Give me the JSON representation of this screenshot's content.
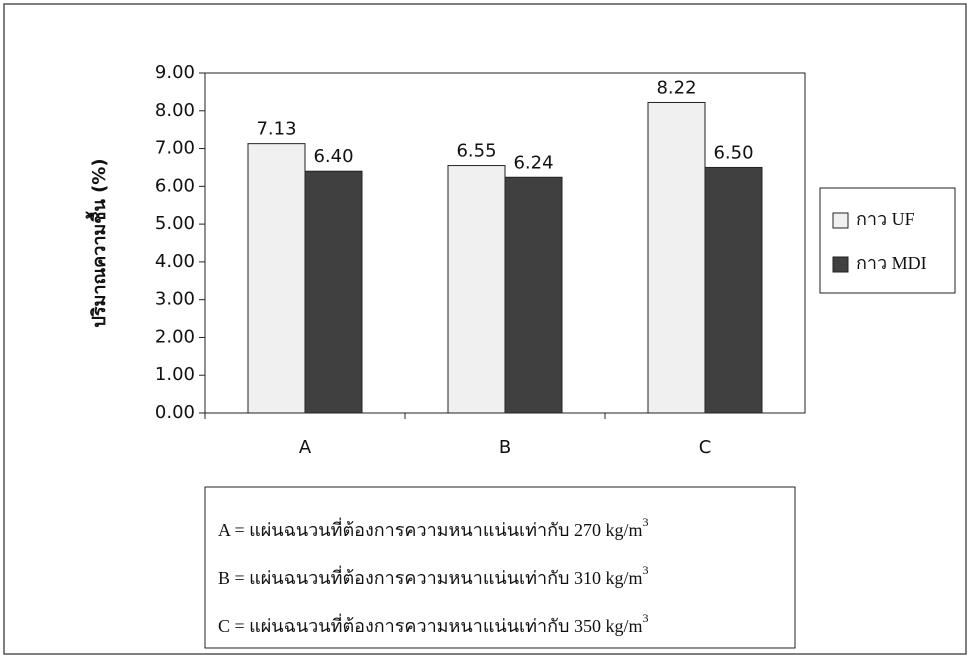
{
  "chart_data": {
    "type": "bar",
    "y_label": "ปริมาณความชื้น (%)",
    "categories": [
      "A",
      "B",
      "C"
    ],
    "series": [
      {
        "name": "กาว UF",
        "color": "#f0f0f0",
        "values": [
          7.13,
          6.55,
          8.22
        ]
      },
      {
        "name": "กาว MDI",
        "color": "#404040",
        "values": [
          6.4,
          6.24,
          6.5
        ]
      }
    ],
    "ylim": [
      0,
      9
    ],
    "yticks": [
      {
        "value": 0,
        "label": "0.00"
      },
      {
        "value": 1,
        "label": "1.00"
      },
      {
        "value": 2,
        "label": "2.00"
      },
      {
        "value": 3,
        "label": "3.00"
      },
      {
        "value": 4,
        "label": "4.00"
      },
      {
        "value": 5,
        "label": "5.00"
      },
      {
        "value": 6,
        "label": "6.00"
      },
      {
        "value": 7,
        "label": "7.00"
      },
      {
        "value": 8,
        "label": "8.00"
      },
      {
        "value": 9,
        "label": "9.00"
      }
    ],
    "value_labels": [
      [
        "7.13",
        "6.55",
        "8.22"
      ],
      [
        "6.40",
        "6.24",
        "6.50"
      ]
    ],
    "legend": "right",
    "notes": [
      {
        "text": "A = แผ่นฉนวนที่ต้องการความหนาแน่นเท่ากับ 270 kg/m",
        "sup": "3"
      },
      {
        "text": "B = แผ่นฉนวนที่ต้องการความหนาแน่นเท่ากับ 310 kg/m",
        "sup": "3"
      },
      {
        "text": "C = แผ่นฉนวนที่ต้องการความหนาแน่นเท่ากับ 350 kg/m",
        "sup": "3"
      }
    ]
  }
}
